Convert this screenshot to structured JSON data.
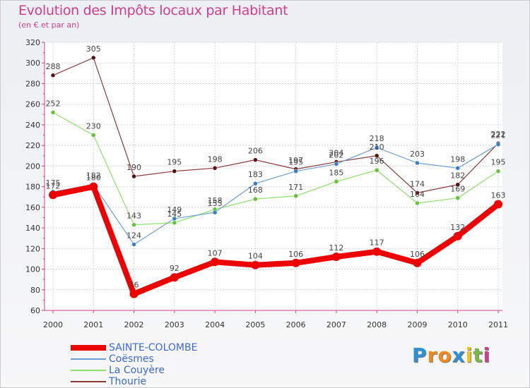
{
  "title": "Evolution des Impôts locaux par Habitant",
  "subtitle": "(en € et par an)",
  "logo": {
    "letters": [
      "P",
      "r",
      "o",
      "x",
      "i",
      "t",
      "i"
    ],
    "colors": [
      "#2f8fd8",
      "#f08a1c",
      "#f08a1c",
      "#2f8fd8",
      "#f0c419",
      "#7ab648",
      "#d23c8c"
    ]
  },
  "chart_data": {
    "type": "line",
    "title": "Evolution des Impôts locaux par Habitant",
    "subtitle": "(en € et par an)",
    "xlabel": "",
    "ylabel": "",
    "ylim": [
      60,
      320
    ],
    "yticks": [
      60,
      80,
      100,
      120,
      140,
      160,
      180,
      200,
      220,
      240,
      260,
      280,
      300,
      320
    ],
    "categories": [
      "2000",
      "2001",
      "2002",
      "2003",
      "2004",
      "2005",
      "2006",
      "2007",
      "2008",
      "2009",
      "2010",
      "2011"
    ],
    "grid": true,
    "legend": "bottom-left",
    "series": [
      {
        "name": "Thourie",
        "color": "#8b3a3a",
        "marker": "#5a1111",
        "width": 1.2,
        "point": 3,
        "values": [
          288,
          305,
          190,
          195,
          198,
          206,
          197,
          204,
          210,
          174,
          182,
          222
        ],
        "labels": [
          "288",
          "305",
          "190",
          "195",
          "198",
          "206",
          "197",
          "204",
          "210",
          "174",
          "182",
          "222"
        ]
      },
      {
        "name": "La Couyère",
        "color": "#8ee06a",
        "marker": "#66c23a",
        "width": 1.2,
        "point": 3,
        "values": [
          252,
          230,
          143,
          145,
          158,
          168,
          171,
          185,
          196,
          164,
          169,
          195
        ],
        "labels": [
          "252",
          "230",
          "143",
          "145",
          "158",
          "168",
          "171",
          "185",
          "196",
          "164",
          "169",
          "195"
        ]
      },
      {
        "name": "Coësmes",
        "color": "#6a9fd6",
        "marker": "#3a7dc8",
        "width": 1.2,
        "point": 3,
        "values": [
          175,
          182,
          124,
          149,
          155,
          183,
          195,
          202,
          218,
          203,
          198,
          221
        ],
        "labels": [
          "175",
          "182",
          "124",
          "149",
          "155",
          "183",
          "195",
          "202",
          "218",
          "203",
          "198",
          "221"
        ]
      },
      {
        "name": "SAINTE-COLOMBE",
        "color": "#ee0000",
        "marker": "#ee0000",
        "width": 8,
        "point": 6,
        "values": [
          172,
          180,
          76,
          92,
          107,
          104,
          106,
          112,
          117,
          106,
          132,
          163
        ],
        "labels": [
          "172",
          "180",
          "76",
          "92",
          "107",
          "104",
          "106",
          "112",
          "117",
          "106",
          "132",
          "163"
        ]
      }
    ],
    "legend_entries": [
      {
        "name": "SAINTE-COLOMBE",
        "color": "#ee0000",
        "thickness": 8
      },
      {
        "name": "Coësmes",
        "color": "#6a9fd6",
        "thickness": 2
      },
      {
        "name": "La Couyère",
        "color": "#8ee06a",
        "thickness": 2
      },
      {
        "name": "Thourie",
        "color": "#8b3a3a",
        "thickness": 2
      }
    ]
  }
}
